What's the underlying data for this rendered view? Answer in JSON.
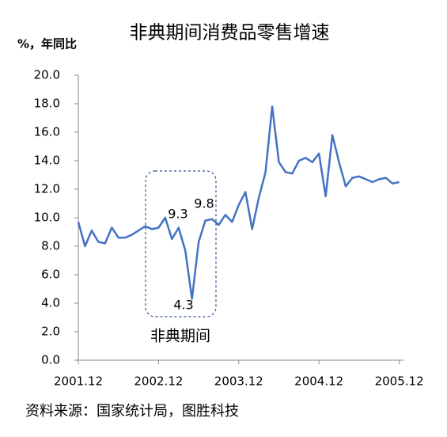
{
  "chart_data": {
    "type": "line",
    "title": "非典期间消费品零售增速",
    "y_label": "%，年同比",
    "source": "资料来源：国家统计局，图胜科技",
    "highlight_label": "非典期间",
    "annotations": [
      "9.3",
      "9.8",
      "4.3"
    ],
    "categories": [
      "2001.12",
      null,
      null,
      null,
      null,
      null,
      null,
      null,
      null,
      null,
      null,
      null,
      "2002.12",
      null,
      null,
      null,
      null,
      null,
      null,
      null,
      null,
      null,
      null,
      null,
      "2003.12",
      null,
      null,
      null,
      null,
      null,
      null,
      null,
      null,
      null,
      null,
      null,
      "2004.12",
      null,
      null,
      null,
      null,
      null,
      null,
      null,
      null,
      null,
      null,
      null,
      "2005.12"
    ],
    "series": [
      {
        "color": "#4472c4",
        "values": [
          9.7,
          8.0,
          9.1,
          8.3,
          8.2,
          9.3,
          8.6,
          8.6,
          8.8,
          9.1,
          9.4,
          9.2,
          9.3,
          10.0,
          8.5,
          9.3,
          7.7,
          4.3,
          8.3,
          9.8,
          9.9,
          9.5,
          10.2,
          9.7,
          10.9,
          11.8,
          9.2,
          11.4,
          13.2,
          17.8,
          13.9,
          13.2,
          13.1,
          14.0,
          14.2,
          13.9,
          14.5,
          11.5,
          15.8,
          13.9,
          12.2,
          12.8,
          12.9,
          12.7,
          12.5,
          12.7,
          12.8,
          12.4,
          12.5
        ]
      }
    ],
    "ylim": [
      0,
      20
    ],
    "yticks": [
      {
        "value": 0,
        "label": "0.0"
      },
      {
        "value": 2,
        "label": "2.0"
      },
      {
        "value": 4,
        "label": "4.0"
      },
      {
        "value": 6,
        "label": "6.0"
      },
      {
        "value": 8,
        "label": "8.0"
      },
      {
        "value": 10,
        "label": "10.0"
      },
      {
        "value": 12,
        "label": "12.0"
      },
      {
        "value": 14,
        "label": "14.0"
      },
      {
        "value": 16,
        "label": "16.0"
      },
      {
        "value": 18,
        "label": "18.0"
      },
      {
        "value": 20,
        "label": "20.0"
      }
    ],
    "grid": false
  }
}
